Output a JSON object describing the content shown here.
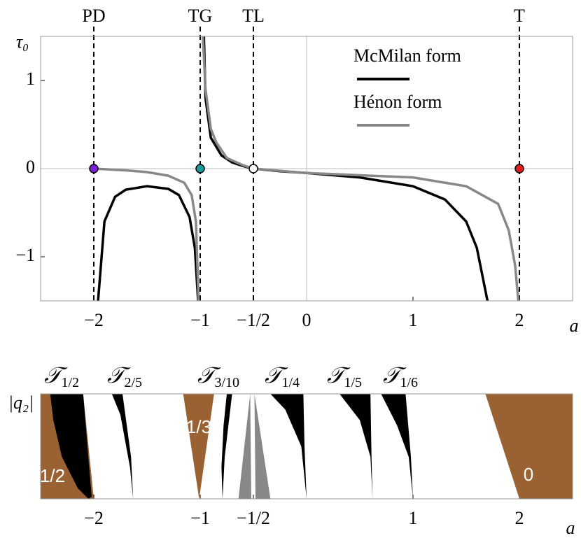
{
  "chart_data": [
    {
      "type": "line",
      "xlabel": "a",
      "ylabel": "τ₀",
      "xlim": [
        -2.5,
        2.5
      ],
      "ylim": [
        -1.5,
        1.5
      ],
      "xticks": [
        {
          "value": -2,
          "label": "−2"
        },
        {
          "value": -1,
          "label": "−1"
        },
        {
          "value": -0.5,
          "label": "−1/2"
        },
        0,
        1,
        2
      ],
      "yticks": [
        {
          "value": -1,
          "label": "−1"
        },
        0,
        1
      ],
      "zero_lines": true,
      "legend": "upper right",
      "series": [
        {
          "name": "McMilan form",
          "color": "#000000",
          "x": [
            -1.96,
            -1.9,
            -1.8,
            -1.7,
            -1.5,
            -1.3,
            -1.2,
            -1.1,
            -1.05,
            -1.02,
            null,
            -0.965,
            -0.95,
            -0.9,
            -0.8,
            -0.7,
            -0.6,
            -0.5,
            -0.25,
            0,
            0.5,
            1,
            1.3,
            1.5,
            1.6,
            1.7
          ],
          "values": [
            -1.5,
            -0.6,
            -0.32,
            -0.24,
            -0.2,
            -0.23,
            -0.3,
            -0.55,
            -0.9,
            -1.5,
            null,
            1.5,
            0.8,
            0.35,
            0.15,
            0.07,
            0.03,
            0,
            -0.03,
            -0.05,
            -0.1,
            -0.2,
            -0.35,
            -0.6,
            -0.9,
            -1.5
          ]
        },
        {
          "name": "Hénon form",
          "color": "#888888",
          "x": [
            -2,
            -1.7,
            -1.5,
            -1.3,
            -1.15,
            -1.08,
            -1.04,
            -1.015,
            null,
            -0.975,
            -0.95,
            -0.9,
            -0.85,
            -0.75,
            -0.6,
            -0.5,
            0,
            1,
            1.5,
            1.8,
            1.9,
            1.96,
            1.99
          ],
          "values": [
            0,
            -0.02,
            -0.04,
            -0.08,
            -0.16,
            -0.3,
            -0.6,
            -1.5,
            null,
            1.5,
            0.9,
            0.45,
            0.3,
            0.12,
            0.04,
            0,
            -0.05,
            -0.1,
            -0.2,
            -0.4,
            -0.7,
            -1.1,
            -1.5
          ]
        }
      ],
      "vlines": [
        {
          "label": "PD",
          "x": -2,
          "y": 0,
          "color": "#7b22d8"
        },
        {
          "label": "TG",
          "x": -1,
          "y": 0,
          "color": "#1a9a9a"
        },
        {
          "label": "TL",
          "x": -0.5,
          "y": 0,
          "color": "#ffffff"
        },
        {
          "label": "T",
          "x": 2,
          "y": 0,
          "color": "#e02020"
        }
      ]
    },
    {
      "type": "region",
      "xlabel": "a",
      "ylabel": "|q₂|",
      "xlim": [
        -2.5,
        2.5
      ],
      "ylim": [
        0,
        1
      ],
      "xticks": [
        {
          "value": -2,
          "label": "−2"
        },
        {
          "value": -1,
          "label": "−1"
        },
        {
          "value": -0.5,
          "label": "−1/2"
        },
        1,
        2
      ],
      "regions": [
        {
          "color": "#9a6233",
          "x": [
            -2.5,
            -2.5,
            -2.1,
            -2.0
          ],
          "y": [
            0,
            1,
            1,
            0
          ]
        },
        {
          "color": "#000000",
          "x": [
            -2.41,
            -2.1,
            -2.06,
            -2.02,
            -2.05,
            -2.15,
            -2.3,
            -2.38
          ],
          "y": [
            1,
            1,
            0.5,
            0.02,
            0,
            0.1,
            0.4,
            0.75
          ]
        },
        {
          "color": "#000000",
          "x": [
            -1.83,
            -1.73,
            -1.65,
            -1.63,
            -1.66,
            -1.75
          ],
          "y": [
            1,
            1,
            0.4,
            0,
            0.3,
            0.8
          ]
        },
        {
          "color": "#9a6233",
          "x": [
            -1.16,
            -0.87,
            -1.01
          ],
          "y": [
            1,
            1,
            0
          ]
        },
        {
          "color": "#000000",
          "x": [
            -0.75,
            -0.7,
            -0.77,
            -0.79,
            -0.8,
            -0.78
          ],
          "y": [
            1,
            1,
            0.4,
            0,
            0.3,
            0.7
          ]
        },
        {
          "color": "#888888",
          "x": [
            -0.53,
            -0.64,
            -0.52
          ],
          "y": [
            1,
            0,
            0
          ]
        },
        {
          "color": "#888888",
          "x": [
            -0.49,
            -0.48,
            -0.34
          ],
          "y": [
            1,
            0,
            0
          ]
        },
        {
          "color": "#000000",
          "x": [
            -0.34,
            -0.03,
            -0.02,
            0,
            -0.05,
            -0.2
          ],
          "y": [
            1,
            1,
            0.5,
            0,
            0.5,
            0.85
          ]
        },
        {
          "color": "#000000",
          "x": [
            0.31,
            0.6,
            0.61,
            0.62,
            0.6,
            0.5
          ],
          "y": [
            1,
            1,
            0.4,
            0,
            0.4,
            0.75
          ]
        },
        {
          "color": "#000000",
          "x": [
            0.7,
            0.93,
            0.98,
            1,
            0.96,
            0.85
          ],
          "y": [
            1,
            1,
            0.4,
            0,
            0.4,
            0.7
          ]
        },
        {
          "color": "#9a6233",
          "x": [
            1.68,
            2.5,
            2.5,
            2
          ],
          "y": [
            1,
            1,
            0,
            0
          ]
        }
      ],
      "labels": [
        {
          "symbol": "𝒯",
          "sub": "1/2"
        },
        {
          "symbol": "𝒯",
          "sub": "2/5"
        },
        {
          "symbol": "𝒯",
          "sub": "3/10"
        },
        {
          "symbol": "𝒯",
          "sub": "1/4"
        },
        {
          "symbol": "𝒯",
          "sub": "1/5"
        },
        {
          "symbol": "𝒯",
          "sub": "1/6"
        }
      ],
      "region_labels": [
        "1/2",
        "1/3",
        "0"
      ]
    }
  ]
}
